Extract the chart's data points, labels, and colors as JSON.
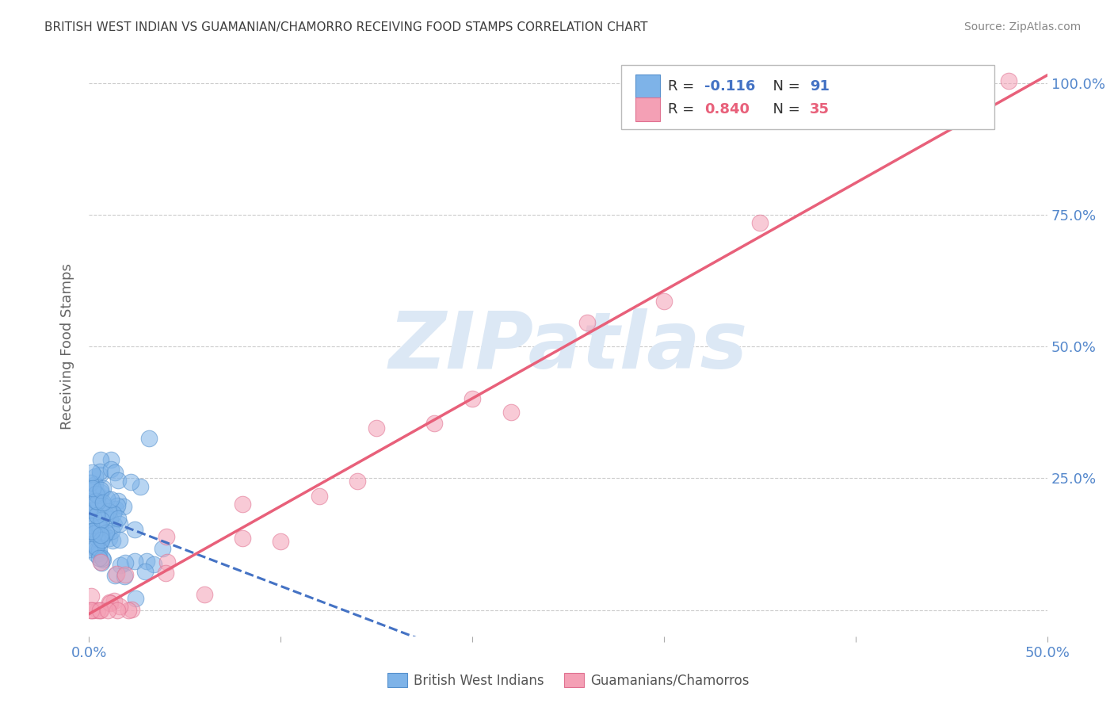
{
  "title": "BRITISH WEST INDIAN VS GUAMANIAN/CHAMORRO RECEIVING FOOD STAMPS CORRELATION CHART",
  "source": "Source: ZipAtlas.com",
  "ylabel": "Receiving Food Stamps",
  "xlim": [
    0.0,
    0.5
  ],
  "ylim": [
    -0.05,
    1.05
  ],
  "R_blue": -0.116,
  "N_blue": 91,
  "R_pink": 0.84,
  "N_pink": 35,
  "scatter_color_blue": "#7eb3e8",
  "scatter_edge_blue": "#5590cc",
  "scatter_color_pink": "#f4a0b5",
  "scatter_edge_pink": "#e07090",
  "line_color_blue": "#4472c4",
  "line_color_pink": "#e8607a",
  "watermark_text": "ZIPatlas",
  "watermark_color": "#dce8f5",
  "legend_label_blue": "British West Indians",
  "legend_label_pink": "Guamanians/Chamorros",
  "background_color": "#ffffff",
  "grid_color": "#cccccc",
  "title_color": "#404040",
  "axis_tick_color": "#5588cc",
  "ylabel_color": "#666666",
  "source_color": "#888888",
  "legend_R_color": "#333333",
  "legend_border_color": "#bbbbbb",
  "ytick_positions": [
    0.0,
    0.25,
    0.5,
    0.75,
    1.0
  ],
  "ytick_labels": [
    "",
    "25.0%",
    "50.0%",
    "75.0%",
    "100.0%"
  ],
  "xtick_positions": [
    0.0,
    0.1,
    0.2,
    0.3,
    0.4,
    0.5
  ],
  "xtick_labels": [
    "0.0%",
    "",
    "",
    "",
    "",
    "50.0%"
  ]
}
